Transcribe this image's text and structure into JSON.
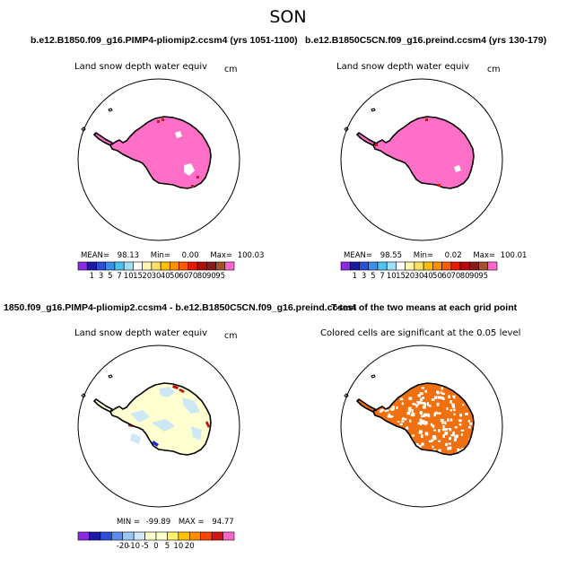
{
  "title": "SON",
  "panels": [
    {
      "id": "p1",
      "title": "b.e12.B1850.f09_g16.PIMP4-pliomip2.ccsm4 (yrs 1051-1100)",
      "variable": "Land snow depth water equiv",
      "units": "cm",
      "stats": {
        "mean_label": "MEAN=",
        "mean": "98.13",
        "min_label": "Min=",
        "min": "0.00",
        "max_label": "Max=",
        "max": "100.03"
      }
    },
    {
      "id": "p2",
      "title": "b.e12.B1850C5CN.f09_g16.preind.ccsm4 (yrs 130-179)",
      "variable": "Land snow depth water equiv",
      "units": "cm",
      "stats": {
        "mean_label": "MEAN=",
        "mean": "98.55",
        "min_label": "Min=",
        "min": "0.02",
        "max_label": "Max=",
        "max": "100.01"
      }
    },
    {
      "id": "p3",
      "title": "1850.f09_g16.PIMP4-pliomip2.ccsm4 - b.e12.B1850C5CN.f09_g16.preind.ccsm4",
      "variable": "Land snow depth water equiv",
      "units": "cm",
      "stats": {
        "min_label": "MIN =",
        "min": "-99.89",
        "max_label": "MAX =",
        "max": "94.77"
      }
    },
    {
      "id": "p4",
      "title": "T-test of the two means at each grid point",
      "variable": "Colored cells are significant at the 0.05 level"
    }
  ],
  "colorbar_abs": {
    "colors": [
      "#8a2be2",
      "#1a1aa6",
      "#2b4fd6",
      "#3c8ee8",
      "#4fc3f0",
      "#9ee0f7",
      "#ffffff",
      "#fff5b0",
      "#ffe066",
      "#ffc000",
      "#ff9000",
      "#ff5a00",
      "#e81a00",
      "#b40a0a",
      "#8b1a1a",
      "#a0522d",
      "#ff66cc"
    ],
    "labels": [
      "1",
      "3",
      "5",
      "7",
      "10",
      "15",
      "20",
      "30",
      "40",
      "50",
      "60",
      "70",
      "80",
      "90",
      "95"
    ]
  },
  "colorbar_diff": {
    "colors": [
      "#8a2be2",
      "#1a1aa6",
      "#2b4fd6",
      "#5a8cf0",
      "#9cc8f5",
      "#cfe8f7",
      "#ffffcc",
      "#ffffcc",
      "#fff06a",
      "#ffc400",
      "#ff8c00",
      "#ff4500",
      "#d21414",
      "#ff66cc"
    ],
    "labels": [
      "-20",
      "-10",
      "-5",
      "0",
      "5",
      "10",
      "20"
    ]
  },
  "colors": {
    "snow": "#ff6ec7",
    "diff_base": "#ffffd0",
    "diff_blue": "#cce8f5",
    "signif": "#f07010"
  }
}
